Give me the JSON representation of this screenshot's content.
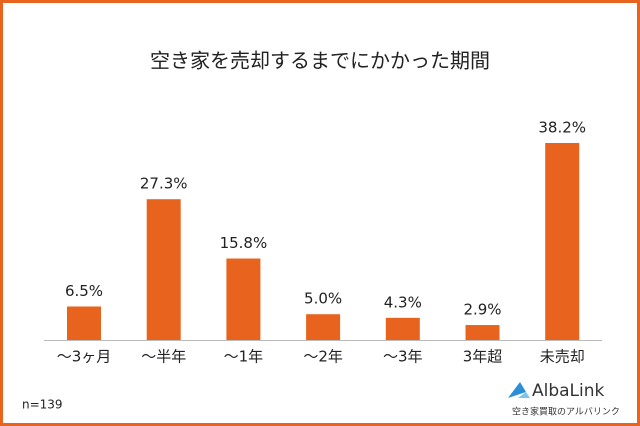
{
  "chart_data": {
    "type": "bar",
    "title": "空き家を売却するまでにかかった期間",
    "categories": [
      "～3ヶ月",
      "～半年",
      "～1年",
      "～2年",
      "～3年",
      "3年超",
      "未売却"
    ],
    "values": [
      6.5,
      27.3,
      15.8,
      5.0,
      4.3,
      2.9,
      38.2
    ],
    "value_labels": [
      "6.5%",
      "27.3%",
      "15.8%",
      "5.0%",
      "4.3%",
      "2.9%",
      "38.2%"
    ],
    "color": "#e8641e",
    "note": "n=139",
    "logo": {
      "name": "AlbaLink",
      "tagline": "空き家買取のアルバリンク"
    }
  }
}
